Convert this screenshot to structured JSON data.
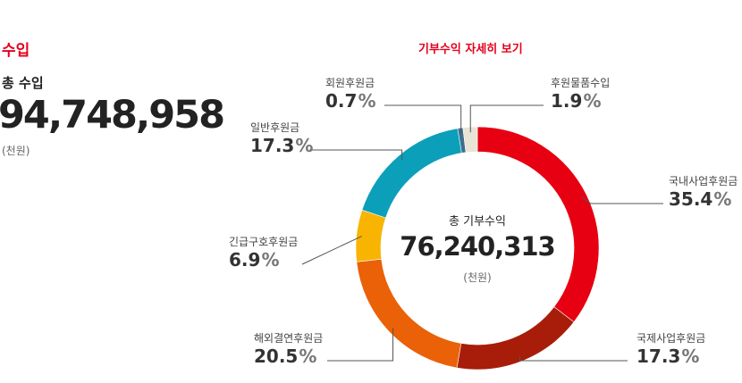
{
  "summary": {
    "section_title": "수입",
    "total_label": "총 수입",
    "total_value": "94,748,958",
    "unit": "(천원)"
  },
  "chart_data": {
    "type": "pie",
    "title": "기부수익 자세히 보기",
    "center_label": "총 기부수익",
    "center_value": "76,240,313",
    "center_unit": "(천원)",
    "percent_symbol": "%",
    "categories": [
      "국내사업후원금",
      "국제사업후원금",
      "해외결연후원금",
      "긴급구호후원금",
      "일반후원금",
      "회원후원금",
      "후원물품수입"
    ],
    "values": [
      35.4,
      17.3,
      20.5,
      6.9,
      17.3,
      0.7,
      1.9
    ],
    "colors": [
      "#e60012",
      "#a71d0a",
      "#ea6108",
      "#f8b400",
      "#0b9fba",
      "#3e6e8e",
      "#e8e4d6"
    ]
  }
}
